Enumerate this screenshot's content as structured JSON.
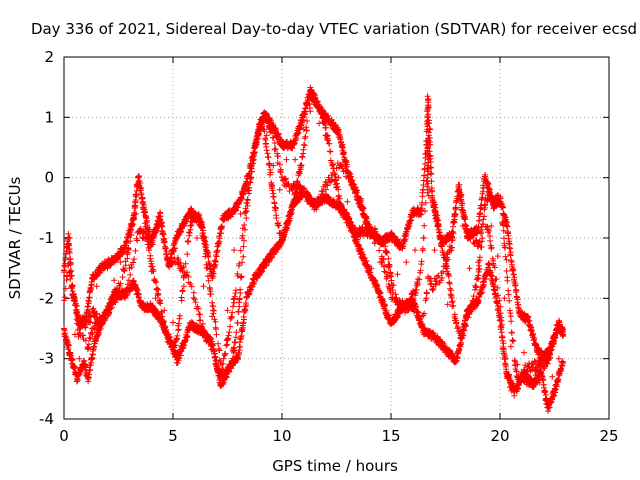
{
  "chart_data": {
    "type": "scatter",
    "title": "Day 336 of 2021, Sidereal Day-to-day VTEC variation (SDTVAR) for receiver ecsd",
    "xlabel": "GPS time / hours",
    "ylabel": "SDTVAR / TECUs",
    "xlim": [
      0,
      25
    ],
    "ylim": [
      -4,
      2
    ],
    "xticks": [
      0,
      5,
      10,
      15,
      20,
      25
    ],
    "yticks": [
      -4,
      -3,
      -2,
      -1,
      0,
      1,
      2
    ],
    "grid": true,
    "marker": "+",
    "colors": {
      "series": "#ff0000",
      "grid": "#a0a0a0",
      "axis": "#000000"
    },
    "series": [
      {
        "name": "SDTVAR ecsd",
        "envelope_upper": [
          [
            0.0,
            -1.5
          ],
          [
            0.2,
            -0.9
          ],
          [
            0.4,
            -1.8
          ],
          [
            0.7,
            -2.4
          ],
          [
            1.0,
            -2.3
          ],
          [
            1.3,
            -1.6
          ],
          [
            1.8,
            -1.4
          ],
          [
            2.3,
            -1.3
          ],
          [
            2.8,
            -1.1
          ],
          [
            3.2,
            -0.6
          ],
          [
            3.4,
            0.05
          ],
          [
            3.7,
            -0.5
          ],
          [
            4.0,
            -1.0
          ],
          [
            4.4,
            -0.6
          ],
          [
            4.8,
            -1.4
          ],
          [
            5.2,
            -0.9
          ],
          [
            5.8,
            -0.5
          ],
          [
            6.3,
            -0.7
          ],
          [
            6.8,
            -1.6
          ],
          [
            7.3,
            -0.6
          ],
          [
            7.8,
            -0.5
          ],
          [
            8.2,
            -0.2
          ],
          [
            8.6,
            0.3
          ],
          [
            8.9,
            0.8
          ],
          [
            9.2,
            1.1
          ],
          [
            9.6,
            0.9
          ],
          [
            10.0,
            0.6
          ],
          [
            10.5,
            0.6
          ],
          [
            11.0,
            1.1
          ],
          [
            11.3,
            1.5
          ],
          [
            11.7,
            1.2
          ],
          [
            12.2,
            1.0
          ],
          [
            12.6,
            0.8
          ],
          [
            13.0,
            0.2
          ],
          [
            13.5,
            -0.3
          ],
          [
            14.0,
            -0.8
          ],
          [
            14.5,
            -1.0
          ],
          [
            15.0,
            -0.9
          ],
          [
            15.5,
            -1.1
          ],
          [
            16.0,
            -0.5
          ],
          [
            16.4,
            -0.5
          ],
          [
            16.6,
            0.5
          ],
          [
            16.7,
            1.4
          ],
          [
            16.9,
            -0.3
          ],
          [
            17.3,
            -1.0
          ],
          [
            17.8,
            -0.9
          ],
          [
            18.1,
            -0.1
          ],
          [
            18.5,
            -0.9
          ],
          [
            19.0,
            -0.8
          ],
          [
            19.3,
            0.1
          ],
          [
            19.7,
            -0.4
          ],
          [
            20.0,
            -0.3
          ],
          [
            20.3,
            -0.7
          ],
          [
            20.6,
            -1.5
          ],
          [
            20.9,
            -2.2
          ],
          [
            21.3,
            -2.3
          ],
          [
            21.7,
            -2.8
          ],
          [
            22.0,
            -2.9
          ],
          [
            22.3,
            -2.8
          ],
          [
            22.7,
            -2.4
          ],
          [
            22.9,
            -2.5
          ]
        ],
        "envelope_lower": [
          [
            0.0,
            -2.6
          ],
          [
            0.3,
            -3.0
          ],
          [
            0.6,
            -3.4
          ],
          [
            0.9,
            -3.1
          ],
          [
            1.1,
            -3.4
          ],
          [
            1.4,
            -2.8
          ],
          [
            1.8,
            -2.4
          ],
          [
            2.3,
            -2.0
          ],
          [
            2.8,
            -2.0
          ],
          [
            3.2,
            -1.8
          ],
          [
            3.6,
            -2.2
          ],
          [
            4.0,
            -2.2
          ],
          [
            4.4,
            -2.4
          ],
          [
            4.8,
            -2.7
          ],
          [
            5.2,
            -3.1
          ],
          [
            5.8,
            -2.5
          ],
          [
            6.3,
            -2.6
          ],
          [
            6.8,
            -2.8
          ],
          [
            7.2,
            -3.5
          ],
          [
            7.6,
            -3.2
          ],
          [
            8.0,
            -3.0
          ],
          [
            8.4,
            -2.0
          ],
          [
            8.8,
            -1.7
          ],
          [
            9.2,
            -1.5
          ],
          [
            9.6,
            -1.3
          ],
          [
            10.0,
            -1.1
          ],
          [
            10.5,
            -0.5
          ],
          [
            11.0,
            -0.3
          ],
          [
            11.5,
            -0.5
          ],
          [
            12.0,
            -0.4
          ],
          [
            12.5,
            -0.5
          ],
          [
            13.0,
            -0.7
          ],
          [
            13.5,
            -1.2
          ],
          [
            14.0,
            -1.6
          ],
          [
            14.5,
            -2.0
          ],
          [
            15.0,
            -2.5
          ],
          [
            15.5,
            -2.2
          ],
          [
            16.0,
            -2.1
          ],
          [
            16.5,
            -2.6
          ],
          [
            17.0,
            -2.7
          ],
          [
            17.5,
            -2.9
          ],
          [
            18.0,
            -3.1
          ],
          [
            18.5,
            -2.3
          ],
          [
            19.0,
            -2.1
          ],
          [
            19.5,
            -1.5
          ],
          [
            20.0,
            -2.4
          ],
          [
            20.3,
            -3.3
          ],
          [
            20.7,
            -3.6
          ],
          [
            21.1,
            -3.3
          ],
          [
            21.5,
            -3.5
          ],
          [
            21.9,
            -3.3
          ],
          [
            22.2,
            -3.9
          ],
          [
            22.5,
            -3.6
          ],
          [
            22.9,
            -3.1
          ]
        ],
        "points": [
          [
            0.0,
            -2.5
          ],
          [
            0.25,
            -1.0
          ],
          [
            0.5,
            -2.6
          ],
          [
            0.7,
            -3.0
          ],
          [
            1.0,
            -2.7
          ],
          [
            1.2,
            -2.4
          ],
          [
            1.5,
            -1.8
          ],
          [
            2.0,
            -1.5
          ],
          [
            2.3,
            -1.7
          ],
          [
            2.6,
            -1.4
          ],
          [
            3.0,
            -1.5
          ],
          [
            3.3,
            -0.6
          ],
          [
            3.4,
            0.0
          ],
          [
            3.6,
            -0.4
          ],
          [
            3.9,
            -1.2
          ],
          [
            4.2,
            -2.0
          ],
          [
            4.6,
            -2.2
          ],
          [
            5.0,
            -2.4
          ],
          [
            5.2,
            -2.9
          ],
          [
            5.5,
            -1.8
          ],
          [
            5.8,
            -0.8
          ],
          [
            6.1,
            -1.0
          ],
          [
            6.4,
            -1.8
          ],
          [
            6.8,
            -2.3
          ],
          [
            7.2,
            -3.1
          ],
          [
            7.5,
            -2.2
          ],
          [
            7.8,
            -1.2
          ],
          [
            8.1,
            -0.6
          ],
          [
            8.4,
            -0.2
          ],
          [
            8.7,
            0.4
          ],
          [
            9.0,
            0.9
          ],
          [
            9.3,
            0.7
          ],
          [
            9.6,
            0.2
          ],
          [
            9.9,
            -0.2
          ],
          [
            10.2,
            0.3
          ],
          [
            10.6,
            0.3
          ],
          [
            11.0,
            0.8
          ],
          [
            11.3,
            1.1
          ],
          [
            11.7,
            0.9
          ],
          [
            12.0,
            0.7
          ],
          [
            12.3,
            0.2
          ],
          [
            12.6,
            0.0
          ],
          [
            13.0,
            -0.4
          ],
          [
            13.3,
            -0.9
          ],
          [
            13.7,
            -1.3
          ],
          [
            14.1,
            -1.5
          ],
          [
            14.5,
            -1.4
          ],
          [
            14.9,
            -1.8
          ],
          [
            15.3,
            -1.6
          ],
          [
            15.7,
            -1.4
          ],
          [
            16.1,
            -1.2
          ],
          [
            16.5,
            -1.0
          ],
          [
            16.7,
            1.2
          ],
          [
            16.8,
            0.8
          ],
          [
            17.0,
            -1.2
          ],
          [
            17.3,
            -1.7
          ],
          [
            17.6,
            -2.1
          ],
          [
            18.0,
            -2.4
          ],
          [
            18.3,
            -0.8
          ],
          [
            18.6,
            -1.5
          ],
          [
            19.0,
            -1.4
          ],
          [
            19.3,
            -0.5
          ],
          [
            19.6,
            -0.8
          ],
          [
            19.9,
            -1.3
          ],
          [
            20.2,
            -2.0
          ],
          [
            20.5,
            -2.8
          ],
          [
            20.8,
            -3.1
          ],
          [
            21.1,
            -2.9
          ],
          [
            21.4,
            -3.2
          ],
          [
            21.8,
            -3.4
          ],
          [
            22.1,
            -3.6
          ],
          [
            22.4,
            -3.3
          ],
          [
            22.7,
            -3.0
          ],
          [
            22.9,
            -2.6
          ]
        ]
      }
    ]
  }
}
